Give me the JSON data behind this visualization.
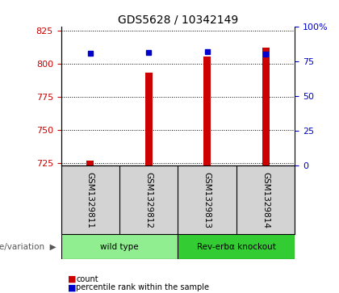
{
  "title": "GDS5628 / 10342149",
  "samples": [
    "GSM1329811",
    "GSM1329812",
    "GSM1329813",
    "GSM1329814"
  ],
  "counts": [
    727,
    793,
    805,
    812
  ],
  "percentiles": [
    80.5,
    81.5,
    82.0,
    80.0
  ],
  "ylim_left": [
    723,
    828
  ],
  "ylim_right": [
    0,
    100
  ],
  "yticks_left": [
    725,
    750,
    775,
    800,
    825
  ],
  "yticks_right": [
    0,
    25,
    50,
    75,
    100
  ],
  "yticklabels_right": [
    "0",
    "25",
    "50",
    "75",
    "100%"
  ],
  "bar_color": "#cc0000",
  "dot_color": "#0000cc",
  "bar_width": 0.12,
  "groups": [
    {
      "label": "wild type",
      "samples": [
        0,
        1
      ],
      "color": "#90ee90"
    },
    {
      "label": "Rev-erbα knockout",
      "samples": [
        2,
        3
      ],
      "color": "#33cc33"
    }
  ],
  "legend_items": [
    {
      "label": "count",
      "color": "#cc0000"
    },
    {
      "label": "percentile rank within the sample",
      "color": "#0000cc"
    }
  ],
  "background_plot": "#ffffff",
  "background_table": "#d3d3d3",
  "table_row_label": "genotype/variation",
  "title_fontsize": 10,
  "tick_fontsize": 8,
  "sample_fontsize": 7.5
}
